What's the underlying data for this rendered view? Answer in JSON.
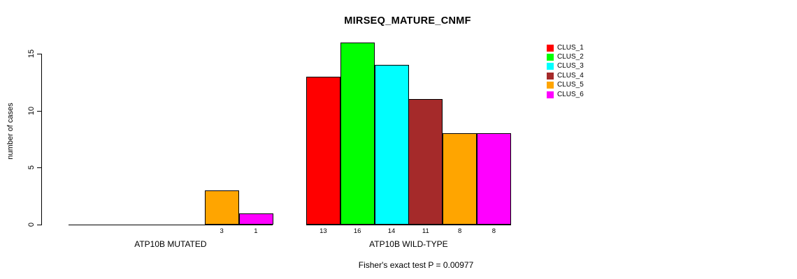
{
  "title": "MIRSEQ_MATURE_CNMF",
  "chart_data": {
    "type": "bar",
    "title": "MIRSEQ_MATURE_CNMF",
    "ylabel": "number of cases",
    "xlabel": "",
    "ylim": [
      0,
      15
    ],
    "yticks": [
      0,
      5,
      10,
      15
    ],
    "grid": false,
    "legend_position": "right-outside",
    "categories": [
      "ATP10B MUTATED",
      "ATP10B WILD-TYPE"
    ],
    "series": [
      {
        "name": "CLUS_1",
        "color": "#FF0000",
        "values": [
          0,
          13
        ]
      },
      {
        "name": "CLUS_2",
        "color": "#00FF00",
        "values": [
          0,
          16
        ]
      },
      {
        "name": "CLUS_3",
        "color": "#00FFFF",
        "values": [
          0,
          14
        ]
      },
      {
        "name": "CLUS_4",
        "color": "#A52A2A",
        "values": [
          0,
          11
        ]
      },
      {
        "name": "CLUS_5",
        "color": "#FFA500",
        "values": [
          3,
          8
        ]
      },
      {
        "name": "CLUS_6",
        "color": "#FF00FF",
        "values": [
          1,
          8
        ]
      }
    ],
    "bar_value_labels": {
      "ATP10B MUTATED": [
        "",
        "",
        "",
        "",
        "3",
        "1"
      ],
      "ATP10B WILD-TYPE": [
        "13",
        "16",
        "14",
        "11",
        "8",
        "8"
      ]
    },
    "footnote": "Fisher's exact test P = 0.00977",
    "axis_color": "#000000",
    "bar_border_color": "#000000"
  }
}
